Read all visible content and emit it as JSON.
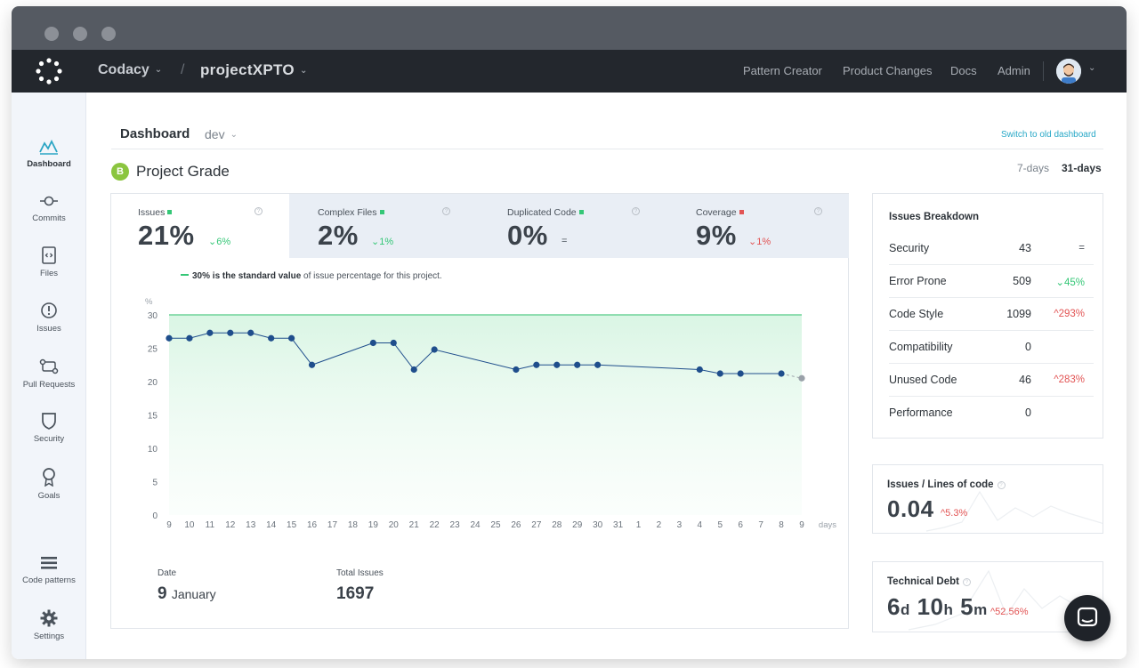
{
  "topnav": {
    "org": "Codacy",
    "separator": "/",
    "project": "projectXPTO",
    "links": [
      "Pattern Creator",
      "Product Changes",
      "Docs",
      "Admin"
    ]
  },
  "sidebar": {
    "items": [
      {
        "label": "Dashboard",
        "icon": "dashboard-icon"
      },
      {
        "label": "Commits",
        "icon": "commit-icon"
      },
      {
        "label": "Files",
        "icon": "file-code-icon"
      },
      {
        "label": "Issues",
        "icon": "alert-circle-icon"
      },
      {
        "label": "Pull Requests",
        "icon": "pull-request-icon"
      },
      {
        "label": "Security",
        "icon": "shield-icon"
      },
      {
        "label": "Goals",
        "icon": "award-icon"
      },
      {
        "label": "Code patterns",
        "icon": "list-icon"
      },
      {
        "label": "Settings",
        "icon": "gear-icon"
      }
    ]
  },
  "header": {
    "title": "Dashboard",
    "branch": "dev",
    "switch_link": "Switch to old dashboard"
  },
  "grade": {
    "letter": "B",
    "title": "Project Grade",
    "range_7": "7-days",
    "range_31": "31-days"
  },
  "metrics": [
    {
      "label": "Issues",
      "value": "21%",
      "delta": "⌄6%",
      "status": "good"
    },
    {
      "label": "Complex Files",
      "value": "2%",
      "delta": "⌄1%",
      "status": "good"
    },
    {
      "label": "Duplicated Code",
      "value": "0%",
      "delta": "=",
      "status": "good"
    },
    {
      "label": "Coverage",
      "value": "9%",
      "delta": "⌄1%",
      "status": "bad"
    }
  ],
  "chart_note": {
    "bold": "30% is the standard value",
    "rest": " of issue percentage for this project."
  },
  "chart_data": {
    "type": "line",
    "ylabel": "%",
    "xlabel": "days",
    "ylim": [
      0,
      30
    ],
    "yticks": [
      "0",
      "5",
      "10",
      "15",
      "20",
      "25",
      "30"
    ],
    "x_labels": [
      "9",
      "10",
      "11",
      "12",
      "13",
      "14",
      "15",
      "16",
      "17",
      "18",
      "19",
      "20",
      "21",
      "22",
      "23",
      "24",
      "25",
      "26",
      "27",
      "28",
      "29",
      "30",
      "31",
      "1",
      "2",
      "3",
      "4",
      "5",
      "6",
      "7",
      "8",
      "9"
    ],
    "standard_value": 30,
    "series": [
      {
        "name": "Issues",
        "points": [
          {
            "x": "9",
            "y": 26.5
          },
          {
            "x": "10",
            "y": 26.5
          },
          {
            "x": "11",
            "y": 27.3
          },
          {
            "x": "12",
            "y": 27.3
          },
          {
            "x": "13",
            "y": 27.3
          },
          {
            "x": "14",
            "y": 26.5
          },
          {
            "x": "15",
            "y": 26.5
          },
          {
            "x": "16",
            "y": 22.5
          },
          {
            "x": "19",
            "y": 25.8
          },
          {
            "x": "20",
            "y": 25.8
          },
          {
            "x": "21",
            "y": 21.8
          },
          {
            "x": "22",
            "y": 24.8
          },
          {
            "x": "26",
            "y": 21.8
          },
          {
            "x": "27",
            "y": 22.5
          },
          {
            "x": "28",
            "y": 22.5
          },
          {
            "x": "29",
            "y": 22.5
          },
          {
            "x": "30",
            "y": 22.5
          },
          {
            "x": "4",
            "y": 21.8
          },
          {
            "x": "5",
            "y": 21.2
          },
          {
            "x": "6",
            "y": 21.2
          },
          {
            "x": "8",
            "y": 21.2
          },
          {
            "x": "9",
            "y": 20.5
          }
        ]
      }
    ]
  },
  "stats": {
    "date_label": "Date",
    "date_day": "9",
    "date_month": "January",
    "total_label": "Total Issues",
    "total_value": "1697"
  },
  "breakdown": {
    "title": "Issues Breakdown",
    "rows": [
      {
        "name": "Security",
        "value": "43",
        "delta": "=",
        "trend": "flat"
      },
      {
        "name": "Error Prone",
        "value": "509",
        "delta": "⌄45%",
        "trend": "down"
      },
      {
        "name": "Code Style",
        "value": "1099",
        "delta": "^293%",
        "trend": "up"
      },
      {
        "name": "Compatibility",
        "value": "0",
        "delta": "",
        "trend": "none"
      },
      {
        "name": "Unused Code",
        "value": "46",
        "delta": "^283%",
        "trend": "up"
      },
      {
        "name": "Performance",
        "value": "0",
        "delta": "",
        "trend": "none"
      }
    ]
  },
  "issues_loc": {
    "title": "Issues / Lines of code",
    "value": "0.04",
    "delta": "^5.3%"
  },
  "tech_debt": {
    "title": "Technical Debt",
    "d": "6",
    "d_unit": "d",
    "h": "10",
    "h_unit": "h",
    "m": "5",
    "m_unit": "m",
    "delta": "^52.56%"
  },
  "colors": {
    "good": "#35c777",
    "bad": "#e25454",
    "accent": "#28a8c7",
    "series": "#1f4e8c",
    "standard_line": "#6fd49a"
  }
}
